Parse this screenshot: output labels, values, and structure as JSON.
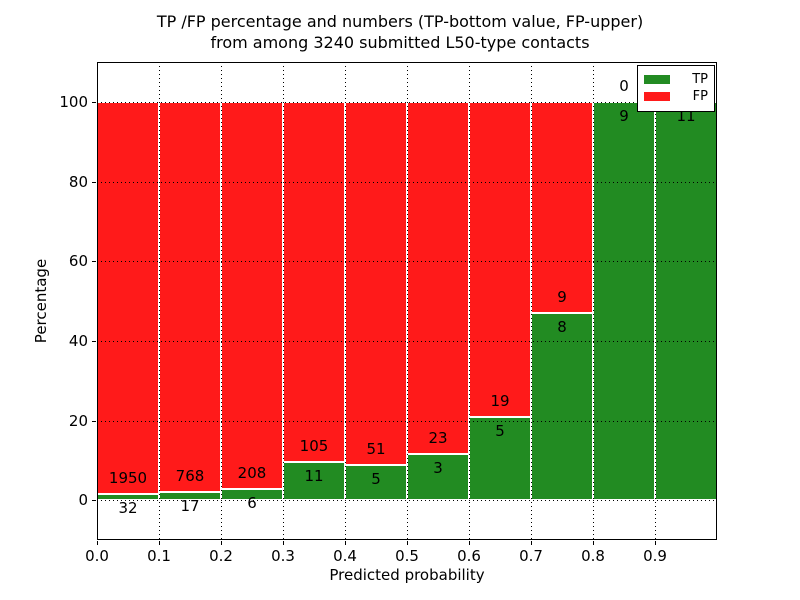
{
  "chart_data": {
    "type": "bar",
    "stacked": true,
    "title_line1": "TP /FP percentage and numbers (TP-bottom value, FP-upper)",
    "title_line2": "from among 3240 submitted L50-type contacts",
    "xlabel": "Predicted probability",
    "ylabel": "Percentage",
    "total_contacts": 3240,
    "xlim": [
      0.0,
      1.0
    ],
    "ylim": [
      -10,
      110
    ],
    "x_ticks": [
      "0.0",
      "0.1",
      "0.2",
      "0.3",
      "0.4",
      "0.5",
      "0.6",
      "0.7",
      "0.8",
      "0.9"
    ],
    "y_ticks": [
      0,
      20,
      40,
      60,
      80,
      100
    ],
    "grid": "dotted black, drawn over bars",
    "legend": {
      "position": "upper right",
      "entries": [
        {
          "label": "TP",
          "color": "#228b22"
        },
        {
          "label": "FP",
          "color": "#ff1a1a"
        }
      ]
    },
    "bins": [
      {
        "range": "0.0-0.1",
        "tp": 32,
        "fp": 1950,
        "tp_pct": 1.61
      },
      {
        "range": "0.1-0.2",
        "tp": 17,
        "fp": 768,
        "tp_pct": 2.17
      },
      {
        "range": "0.2-0.3",
        "tp": 6,
        "fp": 208,
        "tp_pct": 2.8
      },
      {
        "range": "0.3-0.4",
        "tp": 11,
        "fp": 105,
        "tp_pct": 9.48
      },
      {
        "range": "0.4-0.5",
        "tp": 5,
        "fp": 51,
        "tp_pct": 8.93
      },
      {
        "range": "0.5-0.6",
        "tp": 3,
        "fp": 23,
        "tp_pct": 11.54
      },
      {
        "range": "0.6-0.7",
        "tp": 5,
        "fp": 19,
        "tp_pct": 20.83
      },
      {
        "range": "0.7-0.8",
        "tp": 8,
        "fp": 9,
        "tp_pct": 47.06
      },
      {
        "range": "0.8-0.9",
        "tp": 9,
        "fp": 0,
        "tp_pct": 100
      },
      {
        "range": "0.9-1.0",
        "tp": 11,
        "fp": 0,
        "tp_pct": 100
      }
    ]
  },
  "colors": {
    "tp_green": "#228b22",
    "fp_red": "#ff1a1a",
    "grid": "#000000",
    "text": "#000000",
    "background": "#ffffff"
  }
}
